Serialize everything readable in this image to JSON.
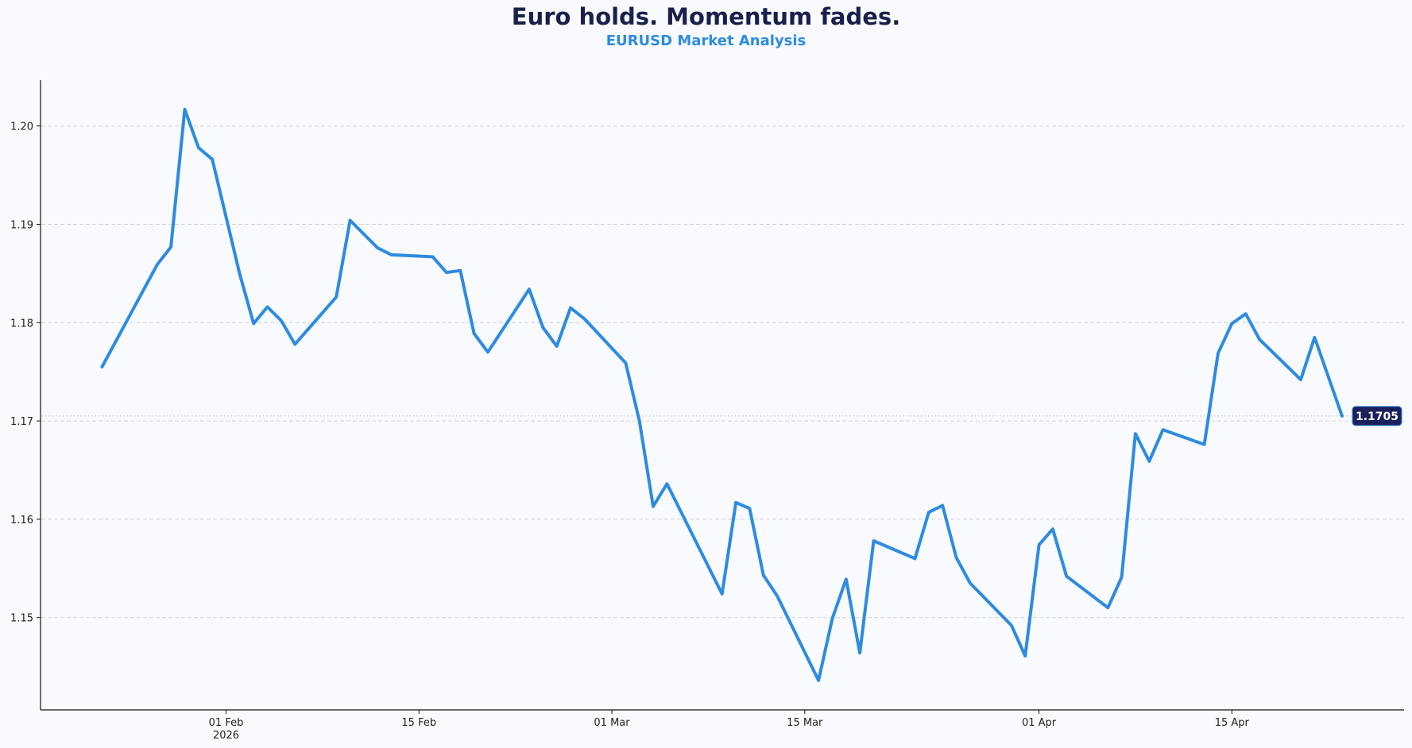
{
  "header": {
    "title": "Euro holds. Momentum fades.",
    "subtitle": "EURUSD Market Analysis"
  },
  "colors": {
    "background": "#f8fafd",
    "line": "#2e8be0",
    "title": "#1b1f4b",
    "subtitle": "#2e8be0",
    "badge_bg": "#1b1f5b",
    "badge_text": "#ffffff",
    "grid": "#d0d4da"
  },
  "last_price_badge": "1.1705",
  "chart_data": {
    "type": "line",
    "title": "Euro holds. Momentum fades.",
    "subtitle": "EURUSD Market Analysis",
    "xlabel": "",
    "ylabel": "",
    "ylim": [
      1.1405,
      1.2047
    ],
    "yticks": [
      "1.15",
      "1.16",
      "1.17",
      "1.18",
      "1.19",
      "1.20"
    ],
    "xticks": [
      {
        "label": "01 Feb",
        "sublabel": "2026",
        "day": 0
      },
      {
        "label": "15 Feb",
        "sublabel": "",
        "day": 14
      },
      {
        "label": "01 Mar",
        "sublabel": "",
        "day": 28
      },
      {
        "label": "15 Mar",
        "sublabel": "",
        "day": 42
      },
      {
        "label": "01 Apr",
        "sublabel": "",
        "day": 59
      },
      {
        "label": "15 Apr",
        "sublabel": "",
        "day": 73
      }
    ],
    "grid": "horizontal dashed",
    "reference_line": {
      "value": 1.1705,
      "style": "dotted"
    },
    "series": [
      {
        "name": "EURUSD",
        "x": [
          "2026-01-23",
          "2026-01-27",
          "2026-01-28",
          "2026-01-29",
          "2026-01-30",
          "2026-01-31",
          "2026-02-02",
          "2026-02-03",
          "2026-02-04",
          "2026-02-05",
          "2026-02-06",
          "2026-02-09",
          "2026-02-10",
          "2026-02-12",
          "2026-02-13",
          "2026-02-16",
          "2026-02-17",
          "2026-02-18",
          "2026-02-19",
          "2026-02-20",
          "2026-02-23",
          "2026-02-24",
          "2026-02-25",
          "2026-02-26",
          "2026-02-27",
          "2026-03-02",
          "2026-03-03",
          "2026-03-04",
          "2026-03-05",
          "2026-03-09",
          "2026-03-10",
          "2026-03-11",
          "2026-03-12",
          "2026-03-13",
          "2026-03-16",
          "2026-03-17",
          "2026-03-18",
          "2026-03-19",
          "2026-03-20",
          "2026-03-23",
          "2026-03-24",
          "2026-03-25",
          "2026-03-26",
          "2026-03-27",
          "2026-03-30",
          "2026-03-31",
          "2026-04-01",
          "2026-04-02",
          "2026-04-03",
          "2026-04-06",
          "2026-04-07",
          "2026-04-08",
          "2026-04-09",
          "2026-04-10",
          "2026-04-13",
          "2026-04-14",
          "2026-04-15",
          "2026-04-16",
          "2026-04-17",
          "2026-04-20",
          "2026-04-21",
          "2026-04-23"
        ],
        "day": [
          -9,
          -5,
          -4,
          -3,
          -2,
          -1,
          1,
          2,
          3,
          4,
          5,
          8,
          9,
          11,
          12,
          15,
          16,
          17,
          18,
          19,
          22,
          23,
          24,
          25,
          26,
          29,
          30,
          31,
          32,
          36,
          37,
          38,
          39,
          40,
          43,
          44,
          45,
          46,
          47,
          50,
          51,
          52,
          53,
          54,
          57,
          58,
          59,
          60,
          61,
          64,
          65,
          66,
          67,
          68,
          71,
          72,
          73,
          74,
          75,
          78,
          79,
          81
        ],
        "values": [
          1.1755,
          1.1859,
          1.1877,
          1.2017,
          1.1978,
          1.1966,
          1.1849,
          1.1799,
          1.1816,
          1.1802,
          1.1778,
          1.1826,
          1.1904,
          1.1876,
          1.1869,
          1.1867,
          1.1851,
          1.1853,
          1.1789,
          1.177,
          1.1834,
          1.1795,
          1.1776,
          1.1815,
          1.1804,
          1.1759,
          1.17,
          1.1613,
          1.1636,
          1.1524,
          1.1617,
          1.1611,
          1.1543,
          1.1522,
          1.1436,
          1.1499,
          1.1539,
          1.1464,
          1.1578,
          1.156,
          1.1607,
          1.1614,
          1.1561,
          1.1535,
          1.1492,
          1.1461,
          1.1574,
          1.159,
          1.1542,
          1.151,
          1.1541,
          1.1687,
          1.1659,
          1.1691,
          1.1676,
          1.1769,
          1.1799,
          1.1809,
          1.1783,
          1.1742,
          1.1785,
          1.1705
        ]
      }
    ]
  }
}
